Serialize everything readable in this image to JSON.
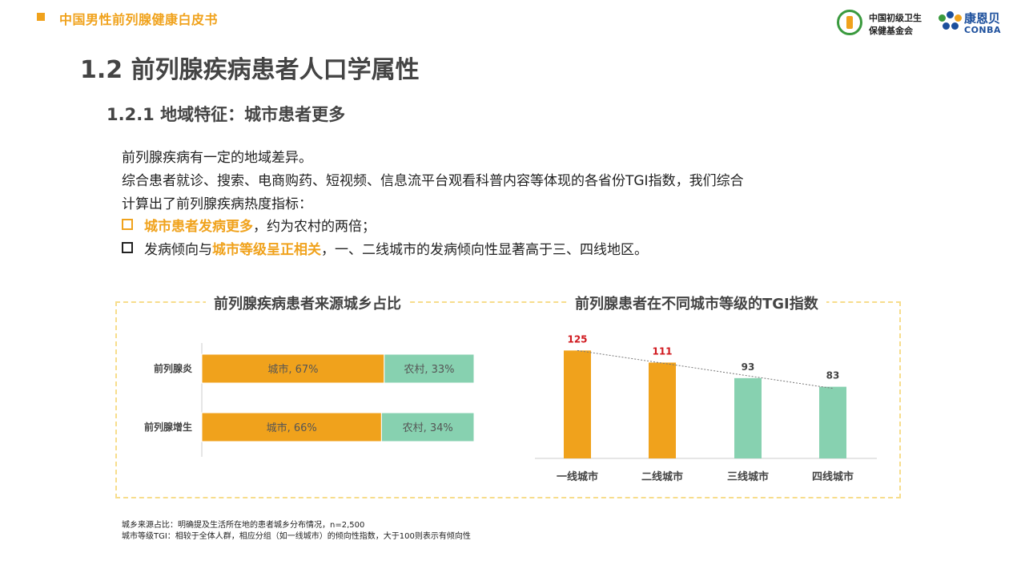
{
  "header": {
    "title": "中国男性前列腺健康白皮书",
    "logo1_line1": "中国初级卫生",
    "logo1_line2": "保健基金会",
    "logo2_name": "康恩贝",
    "logo2_en": "CONBA"
  },
  "section_title": "1.2  前列腺疾病患者人口学属性",
  "subsection_title": "1.2.1 地域特征：城市患者更多",
  "body": {
    "line1": "前列腺疾病有一定的地域差异。",
    "line2": "综合患者就诊、搜索、电商购药、短视频、信息流平台观看科普内容等体现的各省份TGI指数，我们综合",
    "line3": "计算出了前列腺疾病热度指标：",
    "bullet1_highlight": "城市患者发病更多",
    "bullet1_rest": "，约为农村的两倍；",
    "bullet2_pre": "发病倾向与",
    "bullet2_highlight": "城市等级呈正相关",
    "bullet2_rest": "，一、二线城市的发病倾向性显著高于三、四线地区。"
  },
  "colors": {
    "accent": "#f0a21c",
    "green": "#87d1b0",
    "red_label": "#d0181e"
  },
  "chart_data": [
    {
      "type": "bar",
      "orientation": "horizontal",
      "stacked": true,
      "title": "前列腺疾病患者来源城乡占比",
      "categories": [
        "前列腺炎",
        "前列腺增生"
      ],
      "series": [
        {
          "name": "城市",
          "values": [
            67,
            66
          ],
          "labels": [
            "城市, 67%",
            "城市, 66%"
          ],
          "color": "#f0a21c"
        },
        {
          "name": "农村",
          "values": [
            33,
            34
          ],
          "labels": [
            "农村, 33%",
            "农村, 34%"
          ],
          "color": "#87d1b0"
        }
      ]
    },
    {
      "type": "bar",
      "title": "前列腺患者在不同城市等级的TGI指数",
      "categories": [
        "一线城市",
        "二线城市",
        "三线城市",
        "四线城市"
      ],
      "values": [
        125,
        111,
        93,
        83
      ],
      "colors": [
        "#f0a21c",
        "#f0a21c",
        "#87d1b0",
        "#87d1b0"
      ],
      "label_colors": [
        "#d0181e",
        "#d0181e",
        "#444444",
        "#444444"
      ],
      "trendline": "linear, dotted",
      "ylim": [
        0,
        130
      ]
    }
  ],
  "footnotes": [
    "城乡来源占比：明确提及生活所在地的患者城乡分布情况，n=2,500",
    "城市等级TGI：相较于全体人群，相应分组（如一线城市）的倾向性指数，大于100则表示有倾向性"
  ]
}
